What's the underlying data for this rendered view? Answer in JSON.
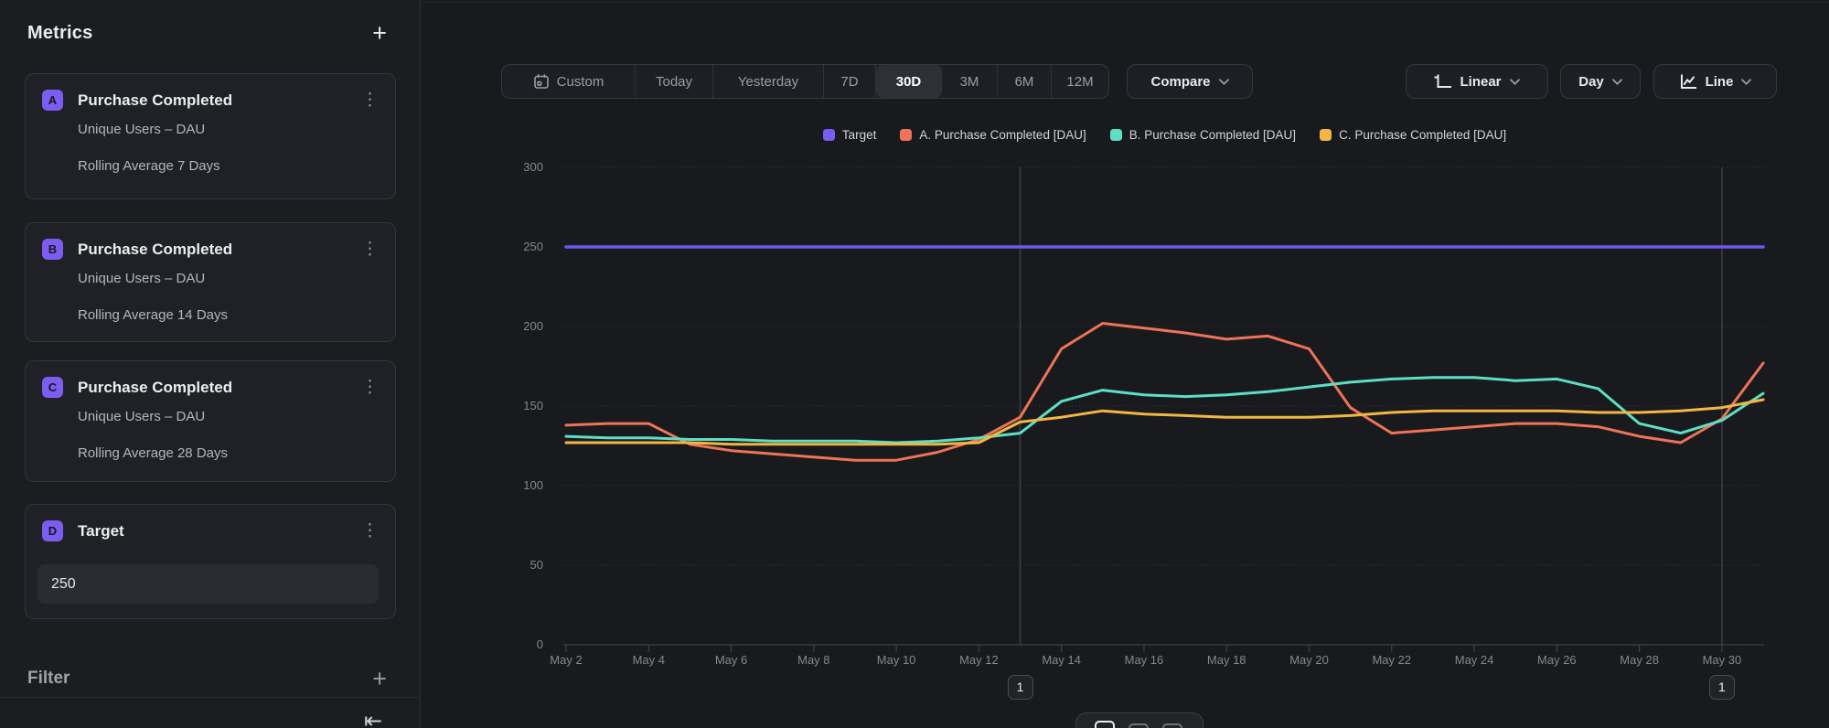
{
  "sidebar": {
    "title": "Metrics",
    "add_metric_label": "+",
    "metrics": [
      {
        "badge": "A",
        "title": "Purchase Completed",
        "line1": "Unique Users – DAU",
        "line2": "Rolling Average 7 Days"
      },
      {
        "badge": "B",
        "title": "Purchase Completed",
        "line1": "Unique Users – DAU",
        "line2": "Rolling Average 14 Days"
      },
      {
        "badge": "C",
        "title": "Purchase Completed",
        "line1": "Unique Users – DAU",
        "line2": "Rolling Average 28 Days"
      }
    ],
    "target": {
      "badge": "D",
      "title": "Target",
      "value": "250"
    },
    "filter_label": "Filter",
    "add_filter_label": "+",
    "icons": [
      "kebab-menu-icon",
      "collapse-sidebar-icon"
    ]
  },
  "toolbar": {
    "ranges": [
      "Custom",
      "Today",
      "Yesterday",
      "7D",
      "30D",
      "3M",
      "6M",
      "12M"
    ],
    "active_range": "30D",
    "compare_label": "Compare",
    "scale_label": "Linear",
    "granularity_label": "Day",
    "chart_type_label": "Line",
    "icons": [
      "calendar-icon",
      "axis-scale-icon",
      "line-chart-icon",
      "chevron-down-icon"
    ]
  },
  "legend": [
    {
      "label": "Target",
      "color": "#7b5cf5"
    },
    {
      "label": "A. Purchase Completed [DAU]",
      "color": "#ee7358"
    },
    {
      "label": "B. Purchase Completed [DAU]",
      "color": "#5cdfc5"
    },
    {
      "label": "C. Purchase Completed [DAU]",
      "color": "#f2b644"
    }
  ],
  "annotations": [
    {
      "label": "1",
      "day": "May 13"
    },
    {
      "label": "1",
      "day": "May 30"
    }
  ],
  "bottom_toolbar": {
    "icons": [
      "view-mode-1-icon",
      "view-mode-2-icon",
      "view-mode-3-icon"
    ],
    "active": 0
  },
  "chart_data": {
    "type": "line",
    "x": [
      "May 2",
      "May 3",
      "May 4",
      "May 5",
      "May 6",
      "May 7",
      "May 8",
      "May 9",
      "May 10",
      "May 11",
      "May 12",
      "May 13",
      "May 14",
      "May 15",
      "May 16",
      "May 17",
      "May 18",
      "May 19",
      "May 20",
      "May 21",
      "May 22",
      "May 23",
      "May 24",
      "May 25",
      "May 26",
      "May 27",
      "May 28",
      "May 29",
      "May 30",
      "May 31"
    ],
    "x_tick_labels": [
      "May 2",
      "May 4",
      "May 6",
      "May 8",
      "May 10",
      "May 12",
      "May 14",
      "May 16",
      "May 18",
      "May 20",
      "May 22",
      "May 24",
      "May 26",
      "May 28",
      "May 30"
    ],
    "ylim": [
      0,
      300
    ],
    "ytick_step": 50,
    "grid": "horizontal-dotted",
    "legend_position": "top-center",
    "annotation_days": [
      "May 13",
      "May 30"
    ],
    "series": [
      {
        "name": "Target",
        "color": "#6e55f2",
        "width": 3.5,
        "values": [
          250,
          250,
          250,
          250,
          250,
          250,
          250,
          250,
          250,
          250,
          250,
          250,
          250,
          250,
          250,
          250,
          250,
          250,
          250,
          250,
          250,
          250,
          250,
          250,
          250,
          250,
          250,
          250,
          250,
          250
        ]
      },
      {
        "name": "A. Purchase Completed [DAU]",
        "color": "#ee7358",
        "width": 3,
        "values": [
          138,
          139,
          139,
          126,
          122,
          120,
          118,
          116,
          116,
          121,
          129,
          143,
          186,
          202,
          199,
          196,
          192,
          194,
          186,
          149,
          133,
          135,
          137,
          139,
          139,
          137,
          131,
          127,
          142,
          177
        ]
      },
      {
        "name": "B. Purchase Completed [DAU]",
        "color": "#5cdfc5",
        "width": 3,
        "values": [
          131,
          130,
          130,
          129,
          129,
          128,
          128,
          128,
          127,
          128,
          130,
          133,
          153,
          160,
          157,
          156,
          157,
          159,
          162,
          165,
          167,
          168,
          168,
          166,
          167,
          161,
          139,
          133,
          141,
          158
        ]
      },
      {
        "name": "C. Purchase Completed [DAU]",
        "color": "#f2b644",
        "width": 3,
        "values": [
          127,
          127,
          127,
          127,
          126,
          126,
          126,
          126,
          126,
          126,
          127,
          140,
          143,
          147,
          145,
          144,
          143,
          143,
          143,
          144,
          146,
          147,
          147,
          147,
          147,
          146,
          146,
          147,
          149,
          154
        ]
      }
    ]
  }
}
